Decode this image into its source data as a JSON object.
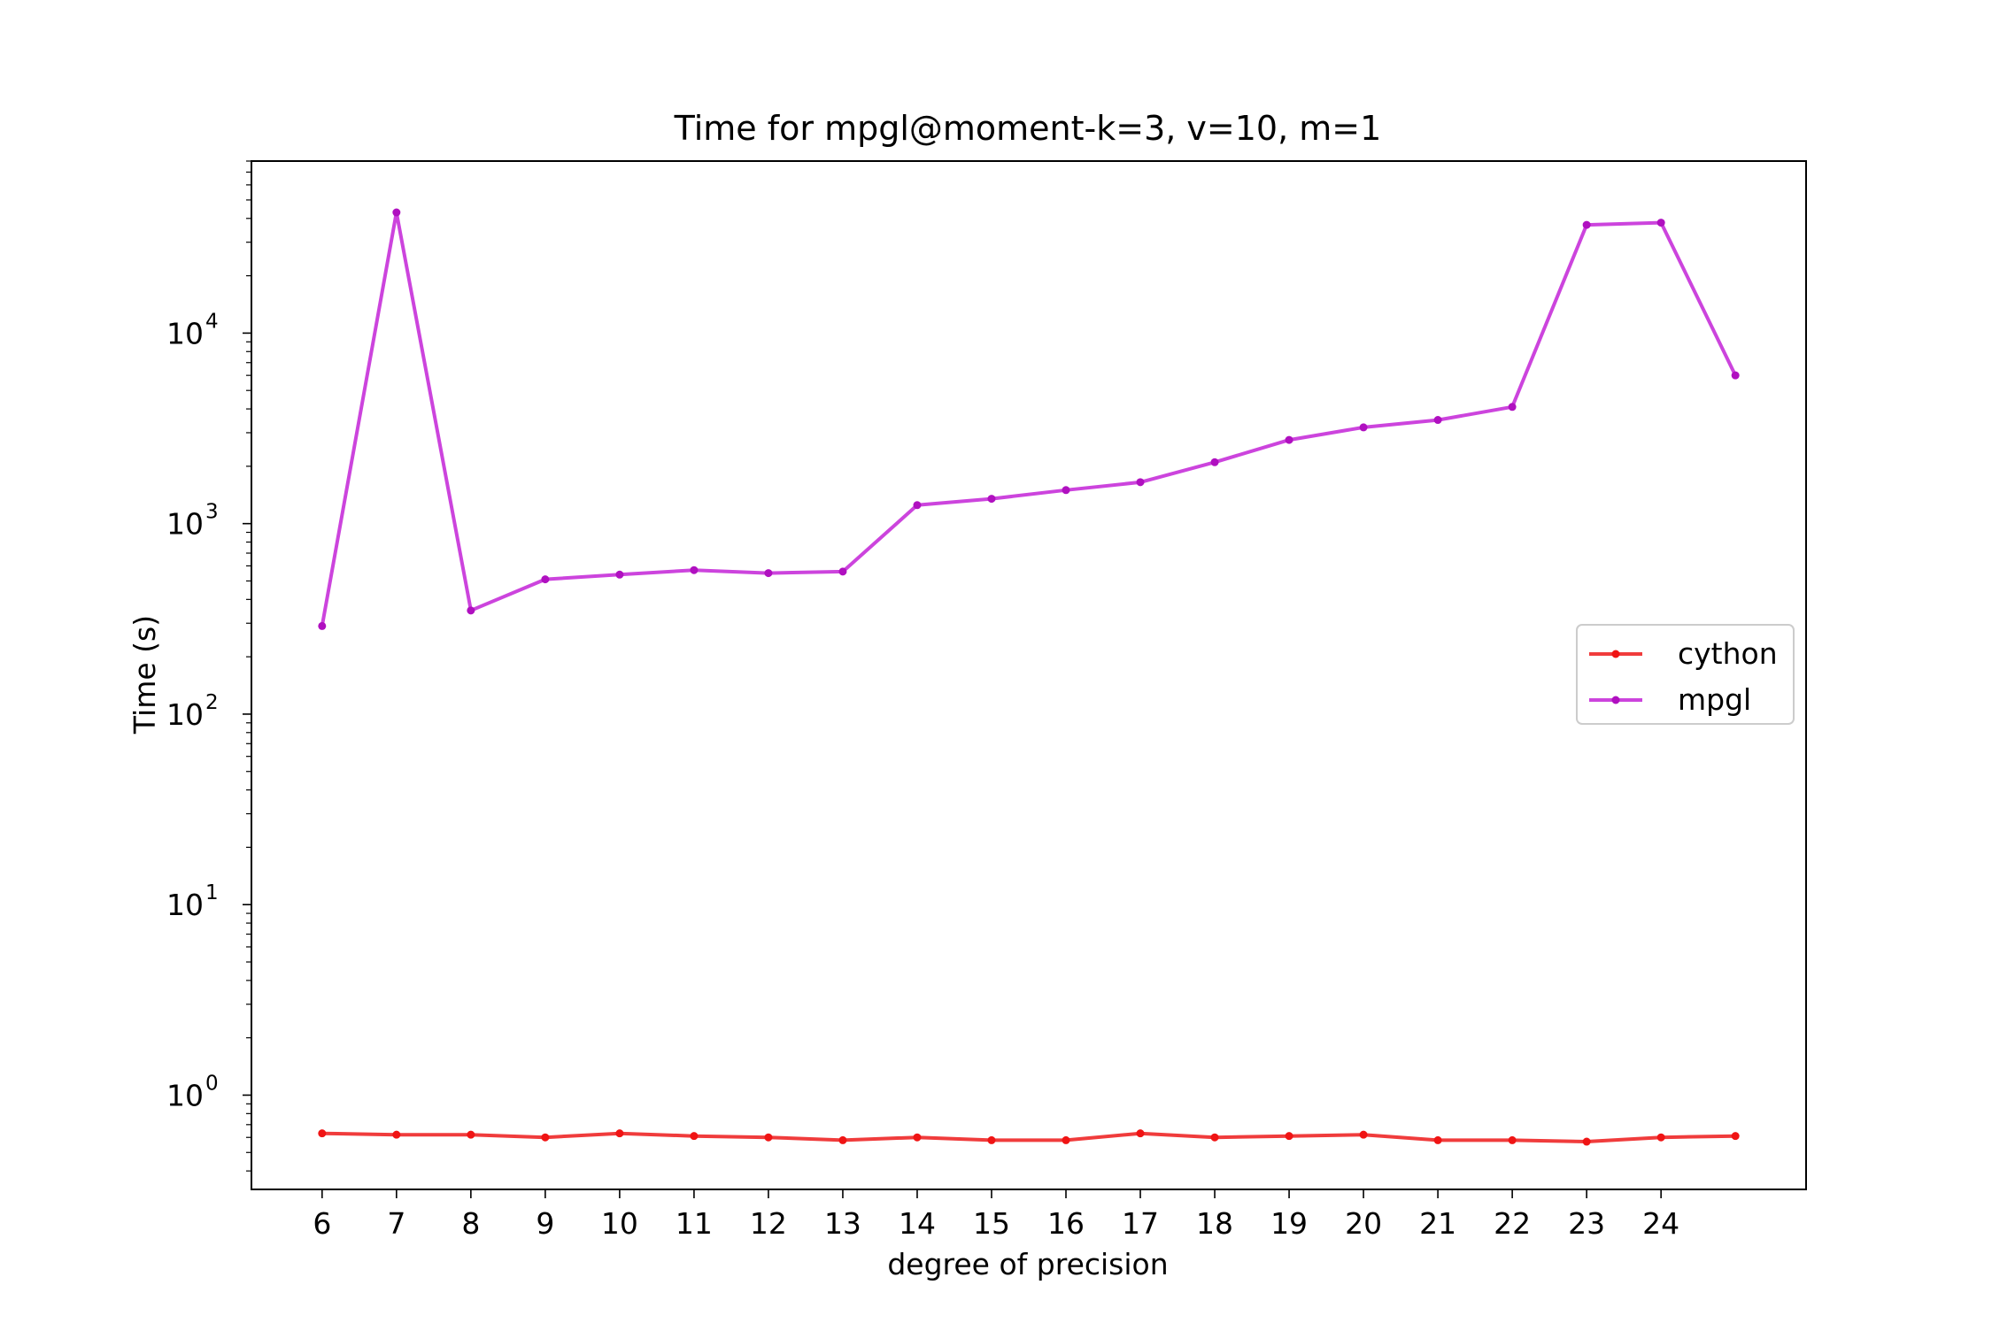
{
  "chart_data": {
    "type": "line",
    "title": "Time for mpgl@moment-k=3, v=10, m=1",
    "xlabel": "degree of precision",
    "ylabel": "Time (s)",
    "x": [
      6,
      7,
      8,
      9,
      10,
      11,
      12,
      13,
      14,
      15,
      16,
      17,
      18,
      19,
      20,
      21,
      22,
      23,
      24,
      25
    ],
    "xticks": [
      6,
      7,
      8,
      9,
      10,
      11,
      12,
      13,
      14,
      15,
      16,
      17,
      18,
      19,
      20,
      21,
      22,
      23,
      24
    ],
    "xlim": [
      5.05,
      25.95
    ],
    "yscale": "log",
    "ylim": [
      0.32,
      80000
    ],
    "yticks": [
      {
        "base": "10",
        "exp": "0",
        "value": 1
      },
      {
        "base": "10",
        "exp": "1",
        "value": 10
      },
      {
        "base": "10",
        "exp": "2",
        "value": 100
      },
      {
        "base": "10",
        "exp": "3",
        "value": 1000
      },
      {
        "base": "10",
        "exp": "4",
        "value": 10000
      }
    ],
    "grid": false,
    "legend_position": "center-right",
    "series": [
      {
        "name": "cython",
        "color": "#f03c3c",
        "marker_color": "#f01414",
        "values": [
          0.63,
          0.62,
          0.62,
          0.6,
          0.63,
          0.61,
          0.6,
          0.58,
          0.6,
          0.58,
          0.58,
          0.63,
          0.6,
          0.61,
          0.62,
          0.58,
          0.58,
          0.57,
          0.6,
          0.61
        ]
      },
      {
        "name": "mpgl",
        "color": "#cc44dd",
        "marker_color": "#b010c0",
        "values": [
          290,
          43000,
          350,
          510,
          540,
          570,
          550,
          560,
          1250,
          1350,
          1500,
          1650,
          2100,
          2750,
          3200,
          3500,
          4100,
          37000,
          38000,
          6000
        ]
      }
    ]
  }
}
